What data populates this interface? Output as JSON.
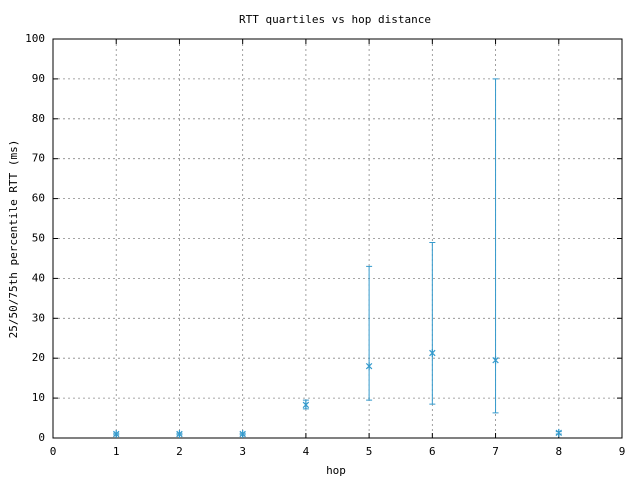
{
  "chart_data": {
    "type": "errorbar",
    "title": "RTT quartiles vs hop distance",
    "xlabel": "hop",
    "ylabel": "25/50/75th percentile RTT (ms)",
    "x": [
      1,
      2,
      3,
      4,
      5,
      6,
      7,
      8
    ],
    "series": [
      {
        "color": "#3399cc",
        "values": [
          1,
          1,
          1,
          8.3,
          18,
          21.3,
          19.5,
          1.3
        ],
        "lows": [
          0.8,
          0.8,
          0.8,
          7.3,
          9.5,
          8.5,
          6.3,
          1
        ],
        "highs": [
          1.2,
          1.2,
          1.2,
          9.5,
          43,
          49,
          90,
          1.6
        ]
      }
    ],
    "xlim": [
      0,
      9
    ],
    "xticks": [
      0,
      1,
      2,
      3,
      4,
      5,
      6,
      7,
      8,
      9
    ],
    "ylim": [
      0,
      100
    ],
    "yticks": [
      0,
      10,
      20,
      30,
      40,
      50,
      60,
      70,
      80,
      90,
      100
    ],
    "grid": true
  }
}
